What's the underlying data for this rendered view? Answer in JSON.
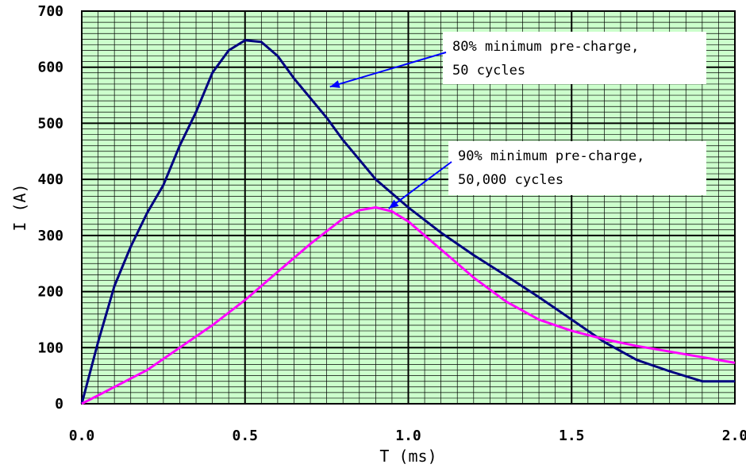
{
  "chart_data": {
    "type": "line",
    "title": "",
    "xlabel": "T  (ms)",
    "ylabel": "I  (A)",
    "xlim": [
      0,
      2
    ],
    "ylim": [
      0,
      700
    ],
    "x_ticks": [
      "0.0",
      "0.5",
      "1.0",
      "1.5",
      "2.0"
    ],
    "y_ticks": [
      "0",
      "100",
      "200",
      "300",
      "400",
      "500",
      "600",
      "700"
    ],
    "grid": true,
    "plot_background": "#ccffcc",
    "series": [
      {
        "color": "#000080",
        "x": [
          0.0,
          0.05,
          0.1,
          0.15,
          0.2,
          0.25,
          0.3,
          0.35,
          0.4,
          0.45,
          0.5,
          0.55,
          0.6,
          0.65,
          0.7,
          0.75,
          0.8,
          0.9,
          1.0,
          1.1,
          1.2,
          1.3,
          1.4,
          1.5,
          1.6,
          1.7,
          1.8,
          1.9,
          2.0
        ],
        "y": [
          0,
          110,
          210,
          280,
          340,
          390,
          460,
          520,
          590,
          630,
          648,
          645,
          620,
          580,
          545,
          510,
          470,
          400,
          350,
          305,
          265,
          228,
          190,
          150,
          110,
          78,
          58,
          40,
          40
        ]
      },
      {
        "color": "#ff00ff",
        "x": [
          0.0,
          0.1,
          0.2,
          0.3,
          0.4,
          0.5,
          0.6,
          0.7,
          0.8,
          0.85,
          0.9,
          0.95,
          1.0,
          1.1,
          1.2,
          1.3,
          1.4,
          1.5,
          1.6,
          1.7,
          1.8,
          1.9,
          2.0
        ],
        "y": [
          0,
          30,
          60,
          100,
          140,
          185,
          235,
          285,
          330,
          345,
          350,
          343,
          325,
          275,
          225,
          182,
          150,
          130,
          115,
          103,
          93,
          83,
          73
        ]
      }
    ],
    "annotations": [
      {
        "lines": [
          "80% minimum pre-charge,",
          "50 cycles"
        ],
        "arrow_to": [
          0.76,
          565
        ]
      },
      {
        "lines": [
          "90% minimum pre-charge,",
          "50,000 cycles"
        ],
        "arrow_to": [
          0.94,
          348
        ]
      }
    ]
  }
}
